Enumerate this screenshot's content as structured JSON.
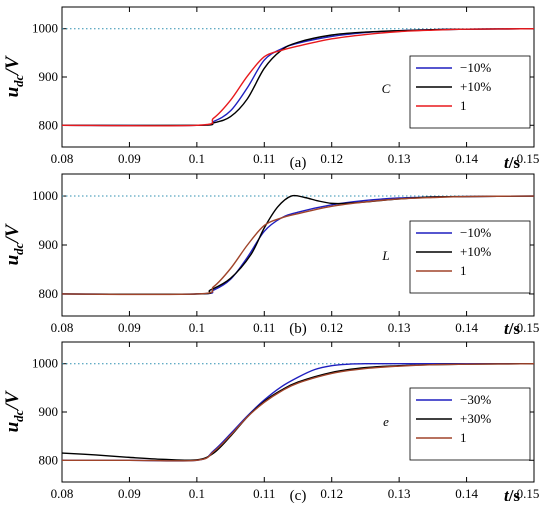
{
  "colors": {
    "blue": "#1f1fbf",
    "black": "#000000",
    "red": "#e8191d",
    "brown": "#a0442a",
    "ref": "#2e8fb0"
  },
  "chart_data": [
    {
      "type": "line",
      "caption": "(a)",
      "param_label": "C",
      "ylabel": "u",
      "ylabel_sub": "dc",
      "ylabel_unit": "/V",
      "xlabel": "t",
      "xlabel_unit": "/s",
      "xlim": [
        0.08,
        0.15
      ],
      "ylim": [
        755,
        1045
      ],
      "xticks": [
        "0.08",
        "0.09",
        "0.1",
        "0.11",
        "0.12",
        "0.13",
        "0.14",
        "0.15"
      ],
      "yticks": [
        "800",
        "900",
        "1000"
      ],
      "reference": {
        "y": 1000,
        "style": "dotted",
        "color": "#2e8fb0"
      },
      "grid": false,
      "legend": "right",
      "series": [
        {
          "name": "−10%",
          "color": "#1f1fbf",
          "x": [
            0.08,
            0.1,
            0.1025,
            0.105,
            0.1075,
            0.11,
            0.1125,
            0.115,
            0.12,
            0.125,
            0.13,
            0.135,
            0.14,
            0.15
          ],
          "y": [
            800,
            800,
            808,
            830,
            878,
            935,
            958,
            970,
            984,
            992,
            996,
            998,
            999,
            1000
          ]
        },
        {
          "name": "+10%",
          "color": "#000000",
          "x": [
            0.08,
            0.1,
            0.1025,
            0.105,
            0.1075,
            0.11,
            0.1125,
            0.115,
            0.12,
            0.125,
            0.13,
            0.135,
            0.14,
            0.15
          ],
          "y": [
            800,
            800,
            805,
            818,
            855,
            918,
            955,
            972,
            987,
            993,
            996,
            998,
            999,
            1000
          ]
        },
        {
          "name": "1",
          "color": "#e8191d",
          "x": [
            0.08,
            0.1,
            0.1025,
            0.105,
            0.1075,
            0.11,
            0.1125,
            0.115,
            0.12,
            0.125,
            0.13,
            0.135,
            0.14,
            0.15
          ],
          "y": [
            800,
            800,
            815,
            852,
            902,
            942,
            955,
            964,
            979,
            988,
            994,
            997,
            999,
            1000
          ]
        }
      ]
    },
    {
      "type": "line",
      "caption": "(b)",
      "param_label": "L",
      "ylabel": "u",
      "ylabel_sub": "dc",
      "ylabel_unit": "/V",
      "xlabel": "t",
      "xlabel_unit": "/s",
      "xlim": [
        0.08,
        0.15
      ],
      "ylim": [
        755,
        1045
      ],
      "xticks": [
        "0.08",
        "0.09",
        "0.1",
        "0.11",
        "0.12",
        "0.13",
        "0.14",
        "0.15"
      ],
      "yticks": [
        "800",
        "900",
        "1000"
      ],
      "reference": {
        "y": 1000,
        "style": "dotted",
        "color": "#2e8fb0"
      },
      "grid": false,
      "legend": "right",
      "series": [
        {
          "name": "−10%",
          "color": "#1f1fbf",
          "x": [
            0.08,
            0.1,
            0.1025,
            0.105,
            0.1075,
            0.11,
            0.1125,
            0.115,
            0.12,
            0.125,
            0.13,
            0.135,
            0.14,
            0.15
          ],
          "y": [
            800,
            800,
            808,
            830,
            875,
            928,
            955,
            967,
            982,
            991,
            996,
            998,
            999,
            1000
          ]
        },
        {
          "name": "+10%",
          "color": "#000000",
          "x": [
            0.08,
            0.1,
            0.102,
            0.105,
            0.108,
            0.11,
            0.112,
            0.114,
            0.116,
            0.118,
            0.12,
            0.122,
            0.125,
            0.13,
            0.135,
            0.14,
            0.15
          ],
          "y": [
            800,
            800,
            808,
            832,
            880,
            935,
            978,
            1000,
            997,
            990,
            985,
            985,
            988,
            994,
            998,
            999,
            1000
          ]
        },
        {
          "name": "1",
          "color": "#a0442a",
          "x": [
            0.08,
            0.1,
            0.1025,
            0.105,
            0.1075,
            0.11,
            0.1125,
            0.115,
            0.12,
            0.125,
            0.13,
            0.135,
            0.14,
            0.15
          ],
          "y": [
            800,
            800,
            815,
            852,
            900,
            940,
            955,
            964,
            979,
            988,
            994,
            997,
            999,
            1000
          ]
        }
      ]
    },
    {
      "type": "line",
      "caption": "(c)",
      "param_label": "e",
      "ylabel": "u",
      "ylabel_sub": "dc",
      "ylabel_unit": "/V",
      "xlabel": "t",
      "xlabel_unit": "/s",
      "xlim": [
        0.08,
        0.15
      ],
      "ylim": [
        755,
        1045
      ],
      "xticks": [
        "0.08",
        "0.09",
        "0.1",
        "0.11",
        "0.12",
        "0.13",
        "0.14",
        "0.15"
      ],
      "yticks": [
        "800",
        "900",
        "1000"
      ],
      "reference": {
        "y": 1000,
        "style": "dotted",
        "color": "#2e8fb0"
      },
      "grid": false,
      "legend": "right",
      "series": [
        {
          "name": "−30%",
          "color": "#1f1fbf",
          "x": [
            0.08,
            0.09,
            0.1,
            0.1025,
            0.105,
            0.1075,
            0.11,
            0.1125,
            0.115,
            0.1175,
            0.12,
            0.1225,
            0.125,
            0.13,
            0.14,
            0.15
          ],
          "y": [
            800,
            800,
            800,
            820,
            855,
            892,
            925,
            952,
            972,
            988,
            996,
            999,
            1000,
            1000,
            1000,
            1000
          ]
        },
        {
          "name": "+30%",
          "color": "#000000",
          "x": [
            0.08,
            0.085,
            0.09,
            0.095,
            0.1,
            0.1025,
            0.105,
            0.1075,
            0.11,
            0.1125,
            0.115,
            0.12,
            0.125,
            0.13,
            0.135,
            0.14,
            0.15
          ],
          "y": [
            815,
            811,
            806,
            802,
            801,
            815,
            850,
            890,
            922,
            945,
            962,
            982,
            992,
            996,
            998,
            999,
            1000
          ]
        },
        {
          "name": "1",
          "color": "#a0442a",
          "x": [
            0.08,
            0.09,
            0.1,
            0.1025,
            0.105,
            0.1075,
            0.11,
            0.1125,
            0.115,
            0.12,
            0.125,
            0.13,
            0.135,
            0.14,
            0.15
          ],
          "y": [
            800,
            800,
            800,
            818,
            852,
            890,
            920,
            943,
            960,
            980,
            990,
            995,
            998,
            999,
            1000
          ]
        }
      ]
    }
  ]
}
